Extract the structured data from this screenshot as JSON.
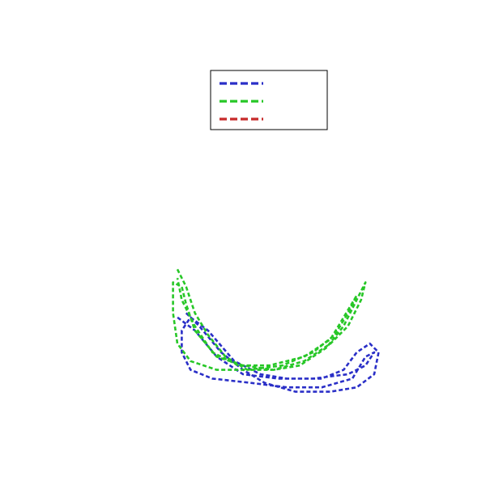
{
  "chart_data": {
    "type": "line",
    "title": "",
    "xlabel": "",
    "ylabel": "",
    "xlim": [
      0,
      100
    ],
    "ylim": [
      0,
      100
    ],
    "grid": false,
    "axes_visible": false,
    "line_style": "dashed",
    "legend": {
      "placement": "top-center",
      "entries": [
        {
          "name": "",
          "color": "#2a2fc7"
        },
        {
          "name": "",
          "color": "#27c727"
        },
        {
          "name": "",
          "color": "#c72a2a"
        }
      ]
    },
    "series": [
      {
        "name": "",
        "color": "#2a2fc7",
        "points": [
          [
            37,
            34
          ],
          [
            40,
            31
          ],
          [
            45,
            25
          ],
          [
            50,
            21
          ],
          [
            55,
            18
          ],
          [
            62,
            16
          ],
          [
            70,
            16
          ],
          [
            76,
            17
          ],
          [
            80,
            20
          ],
          [
            81,
            25
          ],
          [
            79,
            27
          ],
          [
            76,
            25
          ],
          [
            73,
            21
          ],
          [
            68,
            19
          ],
          [
            60,
            19
          ],
          [
            54,
            20
          ],
          [
            48,
            23
          ],
          [
            42,
            30
          ],
          [
            38,
            33
          ],
          [
            36,
            30
          ],
          [
            36,
            25
          ],
          [
            38,
            21
          ],
          [
            43,
            19
          ],
          [
            52,
            18
          ],
          [
            60,
            17
          ],
          [
            68,
            17
          ],
          [
            75,
            19
          ],
          [
            78,
            24
          ],
          [
            80,
            25
          ],
          [
            78,
            22
          ],
          [
            74,
            20
          ],
          [
            66,
            19
          ],
          [
            58,
            19
          ],
          [
            50,
            20
          ],
          [
            44,
            24
          ],
          [
            39,
            30
          ],
          [
            35,
            33
          ]
        ]
      },
      {
        "name": "",
        "color": "#27c727",
        "points": [
          [
            35,
            44
          ],
          [
            37,
            40
          ],
          [
            39,
            34
          ],
          [
            42,
            29
          ],
          [
            46,
            24
          ],
          [
            51,
            21
          ],
          [
            57,
            21
          ],
          [
            63,
            22
          ],
          [
            69,
            26
          ],
          [
            73,
            31
          ],
          [
            76,
            37
          ],
          [
            78,
            41
          ],
          [
            77,
            37
          ],
          [
            74,
            31
          ],
          [
            70,
            27
          ],
          [
            64,
            23
          ],
          [
            57,
            21
          ],
          [
            50,
            22
          ],
          [
            44,
            24
          ],
          [
            39,
            30
          ],
          [
            37,
            36
          ],
          [
            36,
            40
          ],
          [
            34,
            41
          ],
          [
            34,
            34
          ],
          [
            35,
            27
          ],
          [
            38,
            23
          ],
          [
            44,
            21
          ],
          [
            51,
            21
          ],
          [
            59,
            22
          ],
          [
            66,
            25
          ],
          [
            71,
            29
          ],
          [
            74,
            34
          ],
          [
            76,
            38
          ],
          [
            73,
            33
          ],
          [
            70,
            28
          ],
          [
            64,
            24
          ],
          [
            56,
            22
          ],
          [
            49,
            22
          ],
          [
            43,
            25
          ],
          [
            39,
            31
          ],
          [
            36,
            37
          ],
          [
            35,
            42
          ]
        ]
      },
      {
        "name": "",
        "color": "#c72a2a",
        "points": []
      }
    ]
  }
}
